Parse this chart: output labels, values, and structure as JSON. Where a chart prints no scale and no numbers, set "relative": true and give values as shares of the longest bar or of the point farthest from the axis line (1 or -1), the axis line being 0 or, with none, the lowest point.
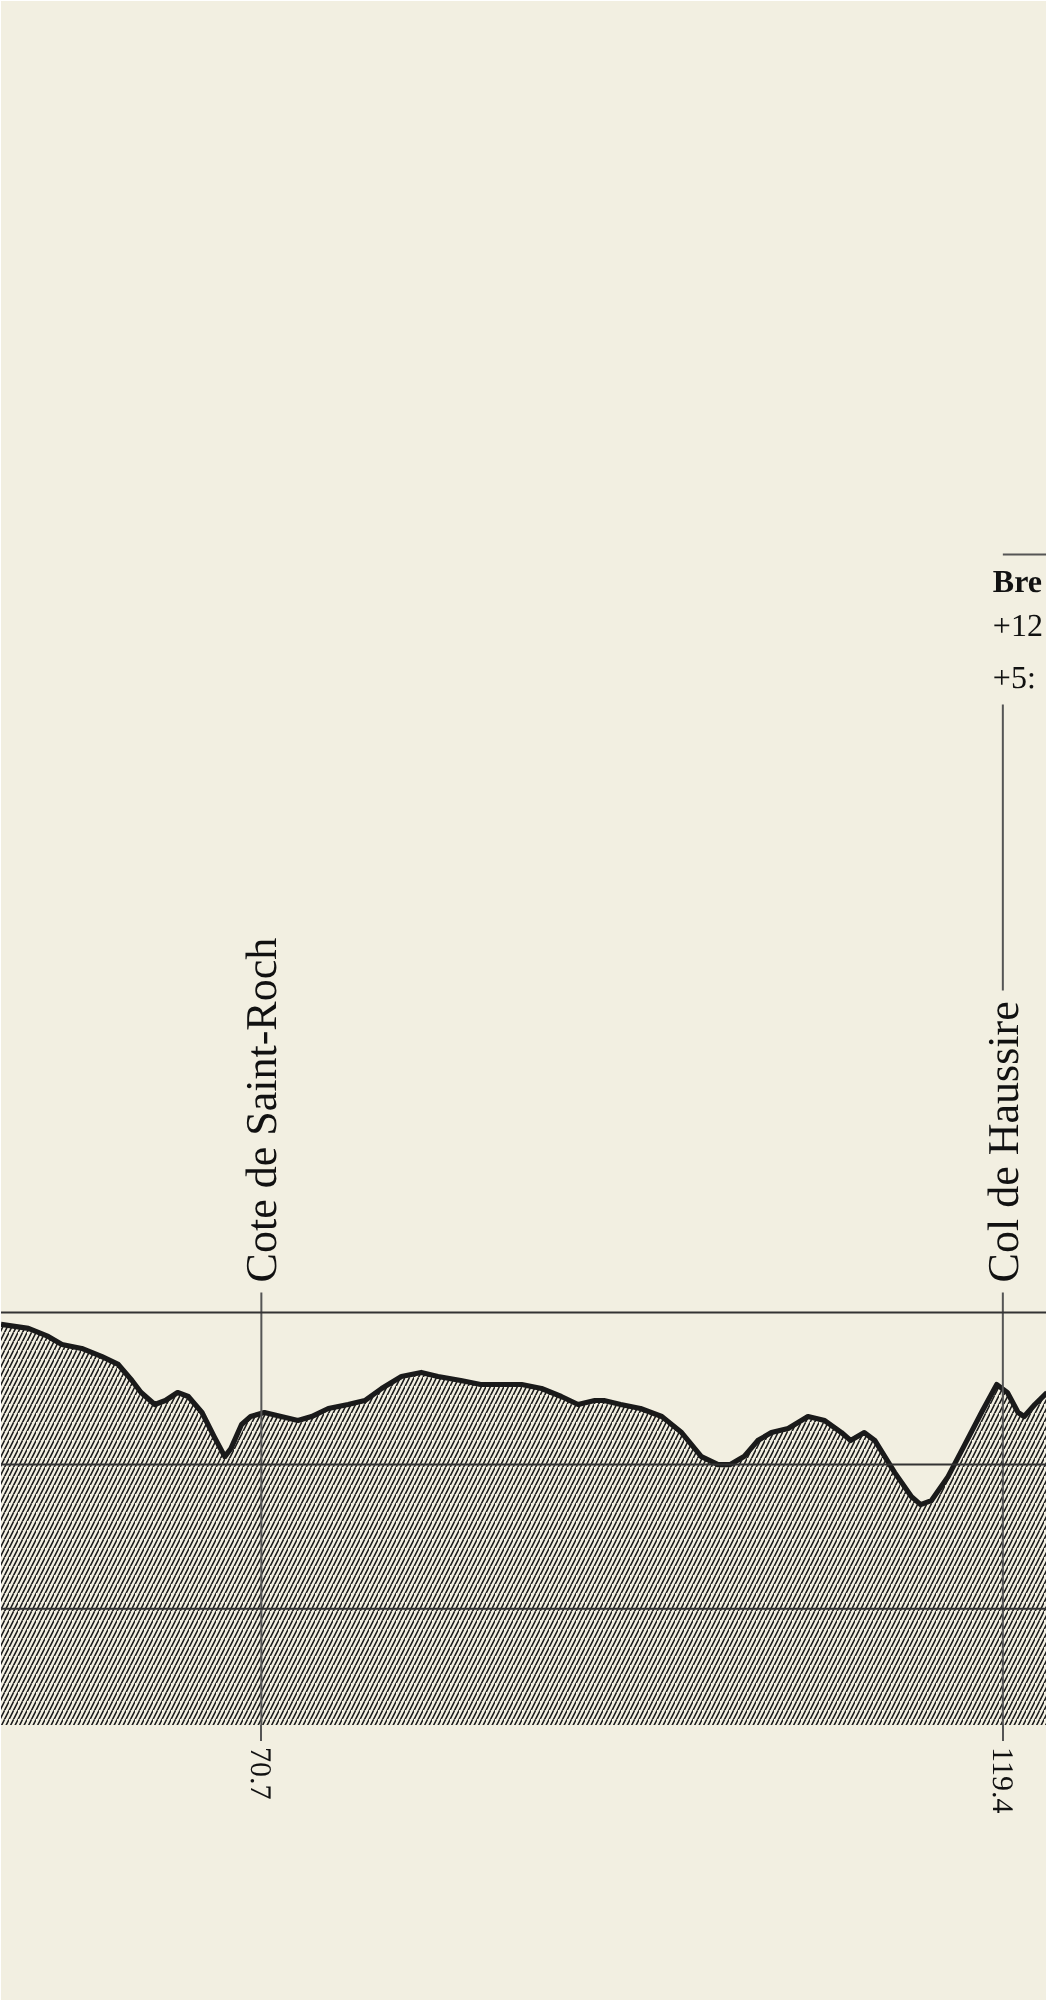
{
  "chart_data": {
    "type": "area",
    "relative": true,
    "x": [
      53.6,
      55.4,
      56.7,
      57.6,
      58.9,
      60.2,
      61.3,
      62.2,
      62.8,
      63.7,
      64.4,
      65.2,
      65.9,
      66.8,
      67.6,
      68.3,
      68.7,
      69.4,
      70.0,
      70.9,
      72.0,
      73.1,
      74.0,
      75.1,
      76.4,
      77.5,
      78.6,
      79.9,
      81.2,
      82.3,
      83.8,
      85.1,
      86.9,
      87.8,
      89.1,
      90.4,
      91.5,
      92.6,
      93.2,
      94.3,
      95.6,
      97.0,
      98.3,
      99.6,
      100.7,
      101.5,
      102.4,
      103.3,
      104.2,
      105.3,
      106.6,
      107.7,
      108.8,
      109.4,
      110.3,
      111.0,
      112.3,
      113.4,
      114.0,
      114.7,
      115.8,
      116.9,
      118.0,
      119.0,
      119.7,
      120.4,
      120.8,
      121.5,
      122.3
    ],
    "xlim": [
      53.6,
      122.3
    ],
    "xticks": [
      70.7,
      119.4
    ],
    "series": [
      {
        "color": "#1a1a1a",
        "values": [
          1.0,
          0.99,
          0.97,
          0.95,
          0.94,
          0.92,
          0.9,
          0.86,
          0.83,
          0.8,
          0.81,
          0.83,
          0.82,
          0.78,
          0.72,
          0.67,
          0.69,
          0.75,
          0.77,
          0.78,
          0.77,
          0.76,
          0.77,
          0.79,
          0.8,
          0.81,
          0.84,
          0.87,
          0.88,
          0.87,
          0.86,
          0.85,
          0.85,
          0.85,
          0.84,
          0.82,
          0.8,
          0.81,
          0.81,
          0.8,
          0.79,
          0.77,
          0.73,
          0.67,
          0.65,
          0.65,
          0.67,
          0.71,
          0.73,
          0.74,
          0.77,
          0.76,
          0.73,
          0.71,
          0.73,
          0.71,
          0.63,
          0.57,
          0.55,
          0.56,
          0.62,
          0.7,
          0.78,
          0.85,
          0.83,
          0.78,
          0.77,
          0.8,
          0.83
        ]
      }
    ],
    "ref_lines": [
      {
        "axis": "y",
        "value": 1.03,
        "color": "#333333"
      },
      {
        "axis": "y",
        "value": 0.65,
        "color": "#333333"
      },
      {
        "axis": "y",
        "value": 0.29,
        "color": "#333333"
      },
      {
        "axis": "x",
        "value": 70.7,
        "label": "Cote de Saint-Roch",
        "color": "#555555"
      },
      {
        "axis": "x",
        "value": 119.4,
        "label": "Col de Haussire",
        "color": "#555555"
      }
    ],
    "annotations": [
      "Bre",
      "+12",
      "+5:"
    ]
  }
}
